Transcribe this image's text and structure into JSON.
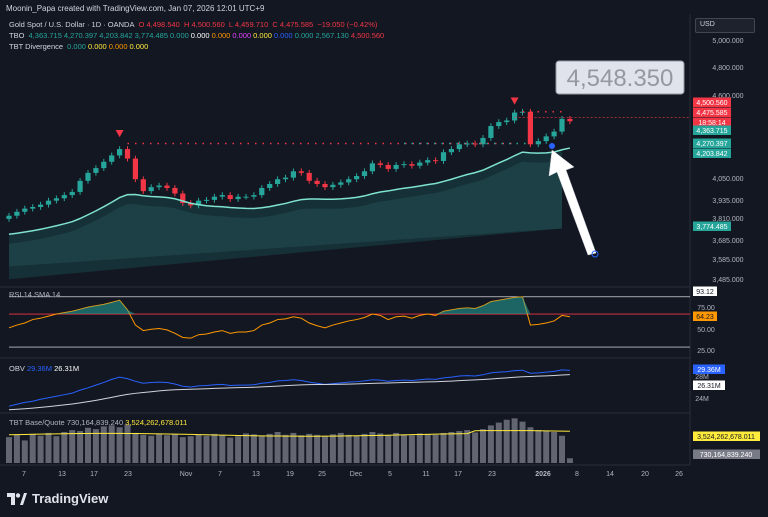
{
  "header": {
    "credit": "Moonin_Papa created with TradingView.com, Jan 07, 2026 12:01 UTC+9",
    "currency_button": "USD"
  },
  "legend": {
    "symbol": "Gold Spot / U.S. Dollar · 1D · OANDA",
    "open": "O 4,498.540",
    "high": "H 4,500.560",
    "low": "L 4,459.710",
    "close": "C 4,475.585",
    "change": "−19.050 (−0.42%)",
    "tbo_label": "TBO",
    "tbo_values": [
      "4,363.715",
      "4,270.397",
      "4,203.842",
      "3,774.485",
      "0.000",
      "0.000",
      "0.000",
      "0.000",
      "0.000",
      "0.000",
      "0.000",
      "2,567.130",
      "4,500.560"
    ],
    "tbo_colors": [
      "#26a69a",
      "#26a69a",
      "#26a69a",
      "#26a69a",
      "#26a69a",
      "#ffffff",
      "#ff9800",
      "#e040fb",
      "#ffeb3b",
      "#2962ff",
      "#26a69a",
      "#26a69a",
      "#f23645"
    ],
    "divergence_label": "TBT Divergence",
    "divergence_values": [
      "0.000",
      "0.000",
      "0.000",
      "0.000"
    ],
    "divergence_colors": [
      "#26a69a",
      "#ffeb3b",
      "#ff9800",
      "#ffeb3b"
    ]
  },
  "annotation": {
    "callout": "4,548.350"
  },
  "panes": {
    "rsi_label": "RSI 14 SMA 14",
    "obv_label": "OBV",
    "obv_v1": "29.36M",
    "obv_v2": "26.31M",
    "vol_label": "TBT Base/Quote",
    "vol_v1": "730,164,839.240",
    "vol_v2": "3,524,262,678.011"
  },
  "chart_data": {
    "type": "line",
    "title": "Gold Spot / U.S. Dollar · 1D · OANDA",
    "price_axis_ticks": [
      "5,000.000",
      "4,800.000",
      "4,600.000",
      "4,050.000",
      "3,935.000",
      "3,810.000",
      "3,685.000",
      "3,585.000",
      "3,485.000"
    ],
    "price_tags": [
      {
        "label": "4,500.560",
        "color": "#f23645"
      },
      {
        "label": "4,475.585",
        "color": "#f23645"
      },
      {
        "label": "18:58:14",
        "color": "#f23645"
      },
      {
        "label": "4,363.715",
        "color": "#26a69a"
      },
      {
        "label": "4,270.397",
        "color": "#26a69a"
      },
      {
        "label": "4,203.842",
        "color": "#26a69a"
      },
      {
        "label": "3,774.485",
        "color": "#26a69a"
      }
    ],
    "x_ticks": [
      "7",
      "13",
      "17",
      "23",
      "Nov",
      "7",
      "13",
      "19",
      "25",
      "Dec",
      "5",
      "11",
      "17",
      "23",
      "2026",
      "8",
      "14",
      "20",
      "26"
    ],
    "closes": [
      3880,
      3905,
      3925,
      3935,
      3950,
      3975,
      3990,
      4010,
      4030,
      4100,
      4150,
      4180,
      4220,
      4260,
      4300,
      4240,
      4110,
      4035,
      4060,
      4070,
      4055,
      4020,
      3960,
      3945,
      3975,
      3980,
      4000,
      4010,
      3985,
      4000,
      4000,
      4010,
      4055,
      4080,
      4110,
      4120,
      4160,
      4150,
      4100,
      4080,
      4060,
      4075,
      4090,
      4110,
      4130,
      4160,
      4210,
      4200,
      4175,
      4200,
      4205,
      4195,
      4215,
      4230,
      4225,
      4280,
      4300,
      4330,
      4335,
      4330,
      4370,
      4445,
      4470,
      4480,
      4530,
      4535,
      4330,
      4350,
      4380,
      4410,
      4490,
      4475
    ],
    "rsi": [
      48,
      52,
      55,
      60,
      62,
      65,
      68,
      70,
      72,
      75,
      78,
      80,
      82,
      85,
      88,
      74,
      52,
      44,
      46,
      47,
      45,
      40,
      34,
      33,
      38,
      39,
      42,
      44,
      40,
      42,
      42,
      44,
      52,
      55,
      60,
      61,
      64,
      62,
      55,
      51,
      48,
      52,
      55,
      58,
      60,
      63,
      68,
      66,
      60,
      64,
      65,
      62,
      66,
      68,
      66,
      72,
      74,
      76,
      77,
      76,
      80,
      86,
      88,
      90,
      92,
      93,
      52,
      53,
      55,
      58,
      66,
      64
    ],
    "rsi_levels": {
      "upper": 93.12,
      "last": 64.23,
      "ticks": [
        "75.00",
        "50.00",
        "25.00"
      ]
    },
    "obv": [
      20,
      20.5,
      21,
      21.3,
      21.8,
      22.2,
      22.6,
      23,
      23.4,
      24.2,
      24.8,
      25.5,
      26.2,
      27,
      27.6,
      27.2,
      26.5,
      26,
      26.2,
      26.3,
      26.2,
      25.8,
      25.2,
      25,
      25.3,
      25.4,
      25.6,
      25.7,
      25.4,
      25.5,
      25.5,
      25.6,
      26,
      26.2,
      26.6,
      26.7,
      26.9,
      26.7,
      26.3,
      26,
      25.7,
      25.9,
      26.1,
      26.3,
      26.4,
      26.6,
      26.9,
      26.8,
      26.5,
      26.7,
      26.8,
      26.7,
      26.9,
      27.1,
      27,
      27.4,
      27.6,
      27.9,
      28,
      27.9,
      28.2,
      28.7,
      28.9,
      29,
      29.3,
      29.4,
      28.6,
      28.7,
      28.9,
      29.1,
      29.5,
      29.36
    ],
    "obv_levels": {
      "ticks": [
        "28M",
        "24M"
      ]
    },
    "volume": [
      55,
      60,
      48,
      62,
      58,
      64,
      57,
      66,
      70,
      68,
      75,
      72,
      78,
      80,
      76,
      82,
      64,
      60,
      58,
      62,
      59,
      61,
      55,
      57,
      60,
      58,
      62,
      59,
      54,
      57,
      63,
      61,
      58,
      62,
      66,
      60,
      64,
      59,
      62,
      60,
      57,
      61,
      64,
      60,
      58,
      62,
      66,
      63,
      60,
      64,
      61,
      59,
      63,
      62,
      60,
      64,
      66,
      68,
      70,
      65,
      72,
      80,
      86,
      92,
      95,
      88,
      76,
      70,
      68,
      66,
      58,
      10
    ],
    "volume_avg": 60
  }
}
